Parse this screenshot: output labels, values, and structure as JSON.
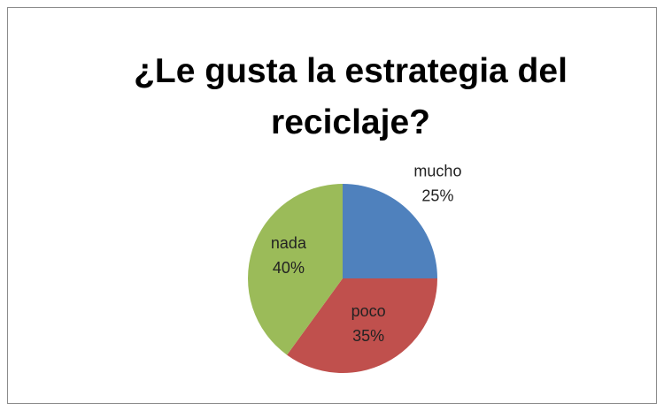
{
  "chart_data": {
    "type": "pie",
    "title": "¿Le gusta la estrategia del reciclaje?",
    "categories": [
      "mucho",
      "poco",
      "nada"
    ],
    "values": [
      25,
      35,
      40
    ],
    "value_labels": [
      "25%",
      "35%",
      "40%"
    ],
    "colors": [
      "#4f81bd",
      "#c0504d",
      "#9bbb59"
    ]
  }
}
